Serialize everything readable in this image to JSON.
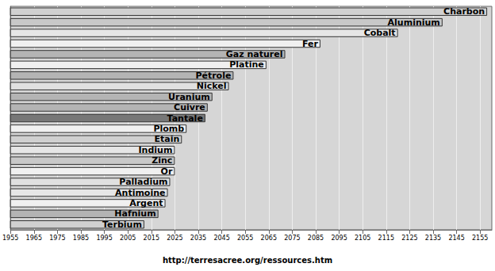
{
  "chart_data": {
    "type": "bar",
    "orientation": "horizontal",
    "source": "http://terresacree.org/ressources.htm",
    "categories": [
      "Charbon",
      "Aluminium",
      "Cobalt",
      "Fer",
      "Gaz naturel",
      "Platine",
      "Pétrole",
      "Nickel",
      "Uranium",
      "Cuivre",
      "Tantale",
      "Plomb",
      "Etain",
      "Indium",
      "Zinc",
      "Or",
      "Palladium",
      "Antimoine",
      "Argent",
      "Hafnium",
      "Terbium"
    ],
    "values": [
      2158,
      2139,
      2120,
      2087,
      2072,
      2064,
      2050,
      2048,
      2041,
      2039,
      2038,
      2030,
      2028,
      2025,
      2025,
      2025,
      2023,
      2022,
      2021,
      2018,
      2012
    ],
    "colors": [
      "#d0d0d0",
      "#c8c8c8",
      "#e6e6e6",
      "#f0f0f0",
      "#b4b4b4",
      "#f0f0f0",
      "#b4b4b4",
      "#e0e0e0",
      "#b4b4b4",
      "#b4b4b4",
      "#777777",
      "#f0f0f0",
      "#d0d0d0",
      "#e6e6e6",
      "#c8c8c8",
      "#f0f0f0",
      "#e0e0e0",
      "#e6e6e6",
      "#f0f0f0",
      "#b4b4b4",
      "#d0d0d0"
    ],
    "xlim": [
      1955,
      2160
    ],
    "xticks": [
      1955,
      1965,
      1975,
      1985,
      1995,
      2005,
      2015,
      2025,
      2035,
      2045,
      2055,
      2065,
      2075,
      2085,
      2095,
      2105,
      2115,
      2125,
      2135,
      2145,
      2155
    ],
    "grid": true,
    "tick_labels": "x"
  }
}
